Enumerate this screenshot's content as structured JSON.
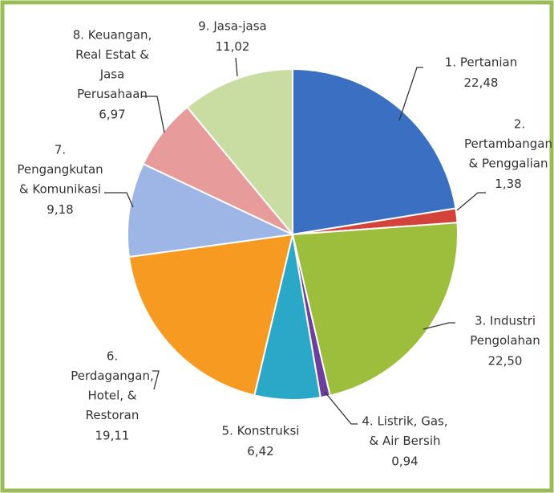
{
  "chart_data": {
    "type": "pie",
    "categories": [
      [
        "1. Pertanian"
      ],
      [
        "2.",
        "Pertambangan",
        "& Penggalian"
      ],
      [
        "3. Industri",
        "Pengolahan"
      ],
      [
        "4. Listrik, Gas,",
        "& Air Bersih"
      ],
      [
        "5. Konstruksi"
      ],
      [
        "6.",
        "Perdagangan,",
        "Hotel, &",
        "Restoran"
      ],
      [
        "7.",
        "Pengangkutan",
        "& Komunikasi"
      ],
      [
        "8. Keuangan,",
        "Real Estat &",
        "Jasa",
        "Perusahaan"
      ],
      [
        "9. Jasa-jasa"
      ]
    ],
    "values": [
      22.48,
      1.38,
      22.5,
      0.94,
      6.42,
      19.11,
      9.18,
      6.97,
      11.02
    ],
    "value_labels": [
      "22,48",
      "1,38",
      "22,50",
      "0,94",
      "6,42",
      "19,11",
      "9,18",
      "6,97",
      "11,02"
    ],
    "colors": [
      "#3b6fc2",
      "#d4433b",
      "#9dbd3c",
      "#6b3f9b",
      "#2ba7c7",
      "#f79a22",
      "#9db6e6",
      "#e79b9a",
      "#c9dca2"
    ]
  }
}
